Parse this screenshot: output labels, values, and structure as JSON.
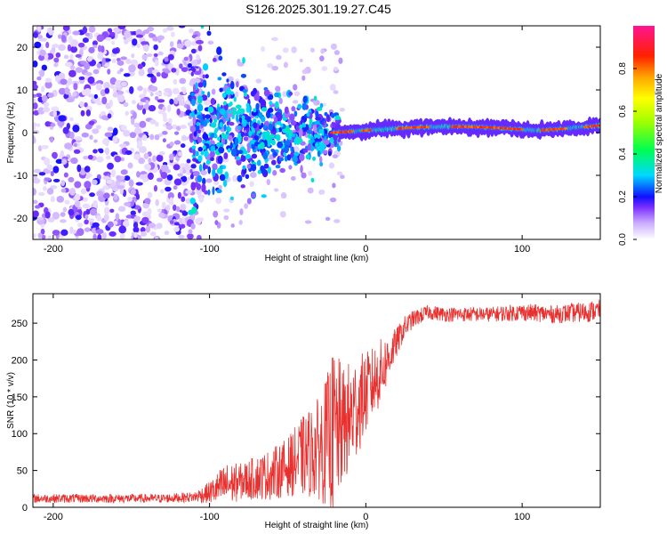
{
  "title": "S126.2025.301.19.27.C45",
  "chart_data": [
    {
      "type": "heatmap",
      "name": "spectrogram",
      "xlabel": "Height of straight line (km)",
      "ylabel": "Frequency (Hz)",
      "xlim": [
        -213,
        150
      ],
      "ylim": [
        -25,
        25
      ],
      "xticks": [
        -200,
        -100,
        0,
        100
      ],
      "yticks": [
        -20,
        -10,
        0,
        10,
        20
      ],
      "colorbar": {
        "label": "Normalized spectral amplitude",
        "range": [
          0,
          1
        ],
        "ticks": [
          0.0,
          0.2,
          0.4,
          0.6,
          0.8
        ]
      },
      "description_regions": [
        {
          "x_range": [
            -213,
            -110
          ],
          "pattern": "scattered weak noise, all frequencies",
          "amplitude": [
            0.0,
            0.15
          ]
        },
        {
          "x_range": [
            -110,
            -20
          ],
          "pattern": "converging chirp streaks, frequency spread ~ -15 to 10 Hz",
          "amplitude": [
            0.1,
            0.3
          ]
        },
        {
          "x_range": [
            -20,
            150
          ],
          "pattern": "narrow band near 0-2 Hz, strong",
          "amplitude": [
            0.4,
            1.0
          ]
        }
      ]
    },
    {
      "type": "line",
      "name": "snr",
      "xlabel": "Height of straight line (km)",
      "ylabel": "SNR (10 * v/v)",
      "xlim": [
        -213,
        150
      ],
      "ylim": [
        0,
        290
      ],
      "xticks": [
        -200,
        -100,
        0,
        100
      ],
      "yticks": [
        0,
        50,
        100,
        150,
        200,
        250
      ],
      "series": [
        {
          "name": "SNR",
          "color": "#e8312f",
          "x": [
            -213,
            -190,
            -160,
            -130,
            -110,
            -100,
            -90,
            -80,
            -70,
            -60,
            -50,
            -40,
            -30,
            -25,
            -20,
            -15,
            -10,
            -5,
            0,
            5,
            10,
            15,
            20,
            25,
            30,
            40,
            50,
            60,
            80,
            100,
            120,
            140,
            150
          ],
          "mean": [
            12,
            12,
            12,
            12,
            14,
            20,
            30,
            35,
            40,
            45,
            55,
            70,
            80,
            90,
            100,
            110,
            120,
            140,
            155,
            170,
            185,
            205,
            225,
            245,
            255,
            265,
            262,
            262,
            262,
            265,
            262,
            265,
            268
          ],
          "spread": [
            6,
            6,
            6,
            6,
            7,
            15,
            30,
            25,
            30,
            35,
            40,
            55,
            70,
            90,
            120,
            80,
            80,
            70,
            55,
            50,
            45,
            30,
            20,
            15,
            12,
            10,
            10,
            10,
            10,
            12,
            12,
            14,
            14
          ]
        }
      ]
    }
  ]
}
